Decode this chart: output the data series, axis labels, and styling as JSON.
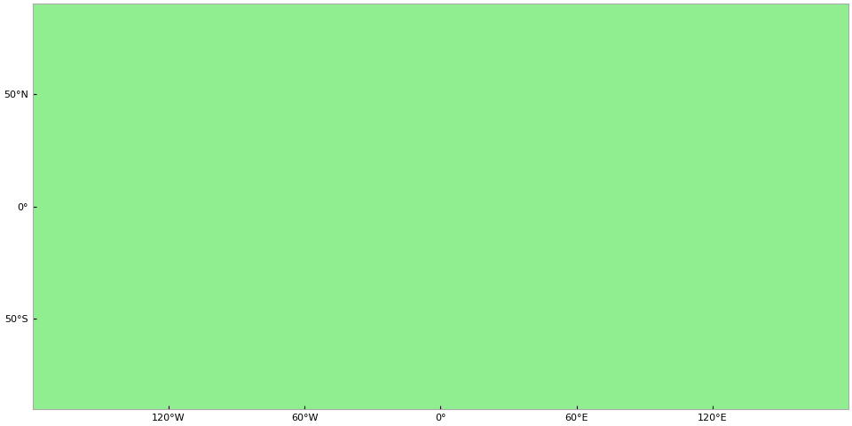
{
  "land_color": "#90ee90",
  "border_color": "#000000",
  "ocean_color": "#ffffff",
  "background_color": "#ffffff",
  "border_linewidth": 0.4,
  "xlim": [
    -180,
    180
  ],
  "ylim": [
    -90,
    90
  ],
  "xticks": [
    -120,
    -60,
    0,
    60,
    120
  ],
  "yticks": [
    50,
    0,
    -50
  ],
  "spine_color": "#aaaaaa",
  "tick_label_size": 8,
  "figsize": [
    9.6,
    4.8
  ],
  "dpi": 100
}
